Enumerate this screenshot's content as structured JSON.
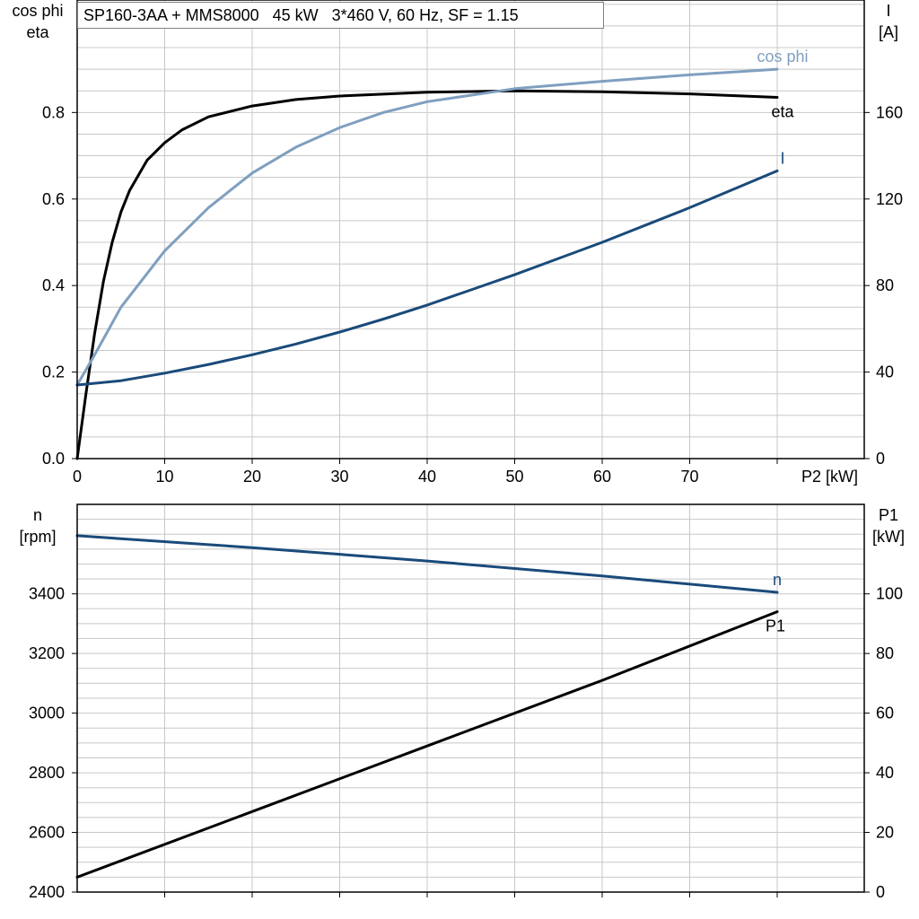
{
  "title": "SP160-3AA + MMS8000   45 kW   3*460 V, 60 Hz, SF = 1.15",
  "colors": {
    "black": "#000000",
    "dark_blue": "#1a4a7a",
    "light_blue": "#7f9fbf",
    "grid": "#c8c8c8"
  },
  "chart_data": [
    {
      "type": "line",
      "x_axis": {
        "label": "P2 [kW]",
        "range": [
          0,
          90
        ],
        "ticks": [
          "0",
          "10",
          "20",
          "30",
          "40",
          "50",
          "60",
          "70"
        ]
      },
      "y_axis_left": {
        "label_lines": [
          "cos phi",
          "eta"
        ],
        "range": [
          0,
          1.06
        ],
        "ticks": [
          "0.0",
          "0.2",
          "0.4",
          "0.6",
          "0.8"
        ]
      },
      "y_axis_right": {
        "label_lines": [
          "I",
          "[A]"
        ],
        "range": [
          0,
          212
        ],
        "ticks": [
          "0",
          "40",
          "80",
          "120",
          "160"
        ]
      },
      "grid": true,
      "series": [
        {
          "name": "eta",
          "axis": "left",
          "color": "#000000",
          "x": [
            0,
            1,
            2,
            3,
            4,
            5,
            6,
            8,
            10,
            12,
            15,
            20,
            25,
            30,
            40,
            50,
            60,
            70,
            80
          ],
          "y": [
            0.0,
            0.15,
            0.29,
            0.41,
            0.5,
            0.57,
            0.62,
            0.69,
            0.73,
            0.76,
            0.79,
            0.815,
            0.83,
            0.838,
            0.847,
            0.85,
            0.848,
            0.843,
            0.835
          ]
        },
        {
          "name": "cos phi",
          "axis": "left",
          "color": "#7f9fbf",
          "x": [
            0,
            2,
            5,
            10,
            15,
            20,
            25,
            30,
            35,
            40,
            45,
            50,
            60,
            70,
            80
          ],
          "y": [
            0.17,
            0.24,
            0.35,
            0.48,
            0.58,
            0.66,
            0.72,
            0.765,
            0.8,
            0.825,
            0.84,
            0.855,
            0.872,
            0.887,
            0.9
          ]
        },
        {
          "name": "I",
          "axis": "right",
          "color": "#1a4a7a",
          "x": [
            0,
            5,
            10,
            15,
            20,
            25,
            30,
            35,
            40,
            45,
            50,
            55,
            60,
            65,
            70,
            75,
            80
          ],
          "y": [
            34,
            36,
            39.5,
            43.5,
            48,
            53,
            58.5,
            64.5,
            71,
            78,
            85,
            92.5,
            100,
            108,
            116,
            124.5,
            133
          ]
        }
      ]
    },
    {
      "type": "line",
      "x_axis": {
        "label": "",
        "range": [
          0,
          90
        ]
      },
      "y_axis_left": {
        "label_lines": [
          "n",
          "[rpm]"
        ],
        "range": [
          2400,
          3700
        ],
        "ticks": [
          "2400",
          "2600",
          "2800",
          "3000",
          "3200",
          "3400"
        ]
      },
      "y_axis_right": {
        "label_lines": [
          "P1",
          "[kW]"
        ],
        "range": [
          0,
          130
        ],
        "ticks": [
          "0",
          "20",
          "40",
          "60",
          "80",
          "100"
        ]
      },
      "grid": true,
      "series": [
        {
          "name": "n",
          "axis": "left",
          "color": "#1a4a7a",
          "x": [
            0,
            20,
            40,
            60,
            80
          ],
          "y": [
            3595,
            3555,
            3510,
            3460,
            3405
          ]
        },
        {
          "name": "P1",
          "axis": "right",
          "color": "#000000",
          "x": [
            0,
            20,
            40,
            60,
            80
          ],
          "y": [
            5,
            27,
            49,
            71,
            94
          ]
        }
      ]
    }
  ]
}
